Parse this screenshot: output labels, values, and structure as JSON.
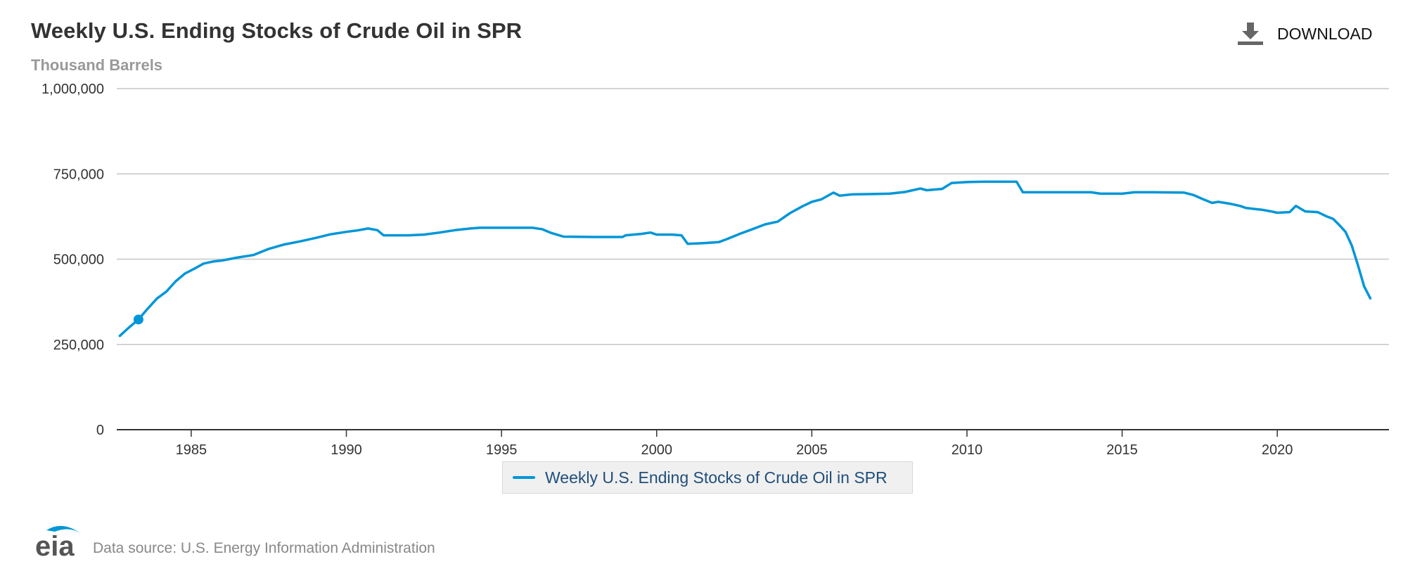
{
  "header": {
    "title": "Weekly U.S. Ending Stocks of Crude Oil in SPR",
    "subtitle": "Thousand Barrels",
    "download_label": "DOWNLOAD",
    "download_icon": "download-icon"
  },
  "footer": {
    "logo_text": "eia",
    "source": "Data source: U.S. Energy Information Administration"
  },
  "colors": {
    "series": "#0096d7",
    "grid": "#c6c6c6",
    "axis": "#333333"
  },
  "chart_data": {
    "type": "line",
    "title": "Weekly U.S. Ending Stocks of Crude Oil in SPR",
    "subtitle": "Thousand Barrels",
    "xlabel": "",
    "ylabel": "",
    "xlim": [
      1982.6,
      2023.6
    ],
    "ylim": [
      0,
      1000000
    ],
    "xticks": [
      1985,
      1990,
      1995,
      2000,
      2005,
      2010,
      2015,
      2020
    ],
    "xtick_labels": [
      "1985",
      "1990",
      "1995",
      "2000",
      "2005",
      "2010",
      "2015",
      "2020"
    ],
    "yticks": [
      0,
      250000,
      500000,
      750000,
      1000000
    ],
    "ytick_labels": [
      "0",
      "250,000",
      "500,000",
      "750,000",
      "1,000,000"
    ],
    "grid": true,
    "legend": "bottom-center",
    "highlight": {
      "x": 1983.3,
      "y": 323000
    },
    "series": [
      {
        "name": "Weekly U.S. Ending Stocks of Crude Oil in SPR",
        "x": [
          1982.7,
          1983.0,
          1983.3,
          1983.6,
          1983.9,
          1984.2,
          1984.5,
          1984.8,
          1985.1,
          1985.4,
          1985.7,
          1986.0,
          1986.5,
          1987.0,
          1987.5,
          1988.0,
          1988.5,
          1989.0,
          1989.5,
          1990.0,
          1990.4,
          1990.7,
          1991.0,
          1991.2,
          1992.0,
          1992.5,
          1993.0,
          1993.5,
          1994.0,
          1994.3,
          1995.0,
          1995.5,
          1996.0,
          1996.3,
          1996.6,
          1997.0,
          1998.0,
          1998.9,
          1999.0,
          1999.5,
          1999.8,
          2000.0,
          2000.5,
          2000.8,
          2001.0,
          2001.5,
          2002.0,
          2002.3,
          2002.7,
          2003.0,
          2003.5,
          2003.9,
          2004.3,
          2004.7,
          2005.0,
          2005.3,
          2005.7,
          2005.9,
          2006.3,
          2007.0,
          2007.5,
          2008.0,
          2008.5,
          2008.7,
          2009.2,
          2009.5,
          2010.0,
          2010.5,
          2011.0,
          2011.5,
          2011.6,
          2011.8,
          2012.0,
          2013.0,
          2014.0,
          2014.3,
          2015.0,
          2015.4,
          2016.0,
          2017.0,
          2017.3,
          2017.6,
          2017.9,
          2018.1,
          2018.5,
          2018.8,
          2019.0,
          2019.5,
          2019.8,
          2020.0,
          2020.4,
          2020.6,
          2020.9,
          2021.3,
          2021.6,
          2021.8,
          2022.0,
          2022.2,
          2022.4,
          2022.6,
          2022.8,
          2023.0
        ],
        "y": [
          275000,
          300000,
          323000,
          355000,
          385000,
          405000,
          435000,
          458000,
          472000,
          487000,
          493000,
          496000,
          505000,
          512000,
          530000,
          543000,
          552000,
          562000,
          573000,
          580000,
          585000,
          590000,
          585000,
          570000,
          570000,
          572000,
          578000,
          585000,
          590000,
          592000,
          592000,
          592000,
          592000,
          588000,
          577000,
          566000,
          565000,
          565000,
          570000,
          574000,
          578000,
          572000,
          572000,
          570000,
          545000,
          547000,
          550000,
          560000,
          575000,
          585000,
          602000,
          610000,
          635000,
          655000,
          668000,
          675000,
          695000,
          686000,
          690000,
          691000,
          692000,
          697000,
          707000,
          702000,
          706000,
          723000,
          726000,
          727000,
          727000,
          727000,
          727000,
          696000,
          696000,
          696000,
          696000,
          692000,
          692000,
          696000,
          696000,
          695000,
          688000,
          676000,
          665000,
          668000,
          662000,
          656000,
          650000,
          645000,
          640000,
          636000,
          638000,
          656000,
          640000,
          638000,
          625000,
          618000,
          600000,
          580000,
          540000,
          482000,
          420000,
          385000
        ]
      }
    ]
  }
}
